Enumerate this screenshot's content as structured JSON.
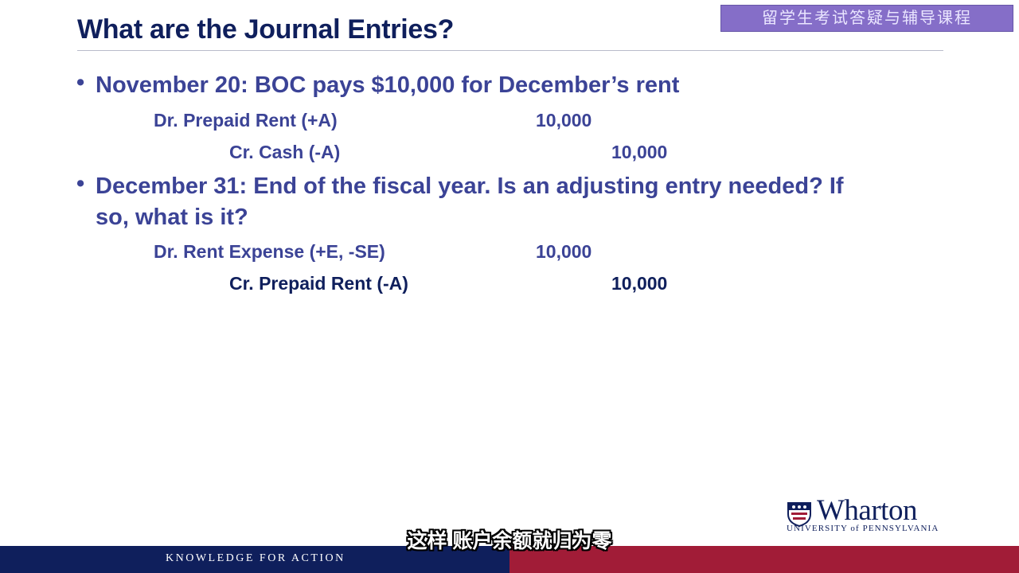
{
  "slide": {
    "title": "What are the Journal Entries?",
    "watermark": "留学生考试答疑与辅导课程"
  },
  "bullets": [
    {
      "marker": "•",
      "line1": "November 20: BOC pays $10,000 for December’s rent",
      "line2": "",
      "debit": {
        "label": "Dr.  Prepaid Rent (+A)",
        "amount": "10,000"
      },
      "credit": {
        "label": "Cr.  Cash (-A)",
        "amount": "10,000"
      }
    },
    {
      "marker": "•",
      "line1": "December 31: End of the fiscal year. Is an adjusting entry needed?  If",
      "line2": "so, what is it?",
      "debit": {
        "label": "Dr.  Rent Expense (+E, -SE)",
        "amount": "10,000"
      },
      "credit": {
        "label": "Cr.  Prepaid Rent (-A)",
        "amount": "10,000"
      }
    }
  ],
  "logo": {
    "name": "Wharton",
    "subtitle": "UNIVERSITY of PENNSYLVANIA"
  },
  "footer": {
    "tagline": "KNOWLEDGE FOR ACTION"
  },
  "caption": "这样 账户余额就归为零",
  "colors": {
    "navy": "#0f1f5c",
    "blue_text": "#3b4396",
    "crimson": "#a11c37"
  }
}
